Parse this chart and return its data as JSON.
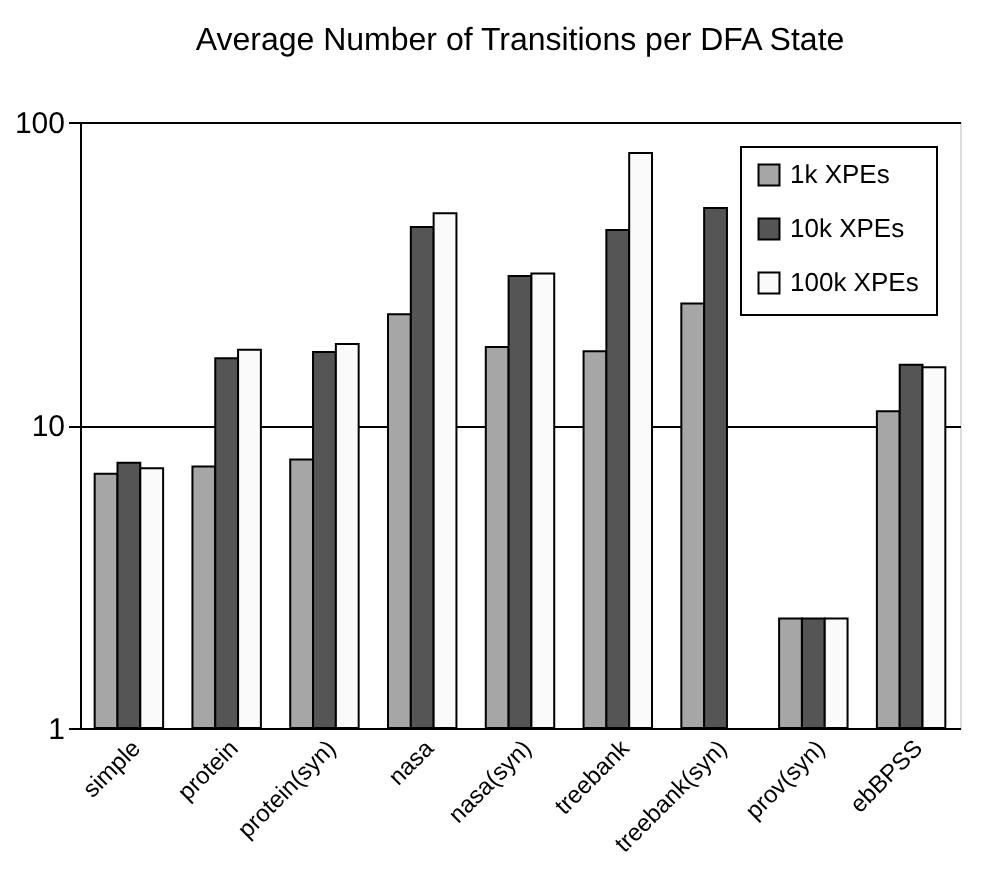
{
  "chart_data": {
    "type": "bar",
    "title": "Average Number of Transitions per DFA State",
    "categories": [
      "simple",
      "protein",
      "protein(syn)",
      "nasa",
      "nasa(syn)",
      "treebank",
      "treebank(syn)",
      "prov(syn)",
      "ebBPSS"
    ],
    "series": [
      {
        "name": "1k XPEs",
        "color": "#a6a6a6",
        "values": [
          6.9,
          7.3,
          7.7,
          23.2,
          18.1,
          17.5,
          25.2,
          2.3,
          11.1
        ]
      },
      {
        "name": "10k XPEs",
        "color": "#555555",
        "values": [
          7.5,
          16.6,
          17.4,
          45,
          31,
          44,
          52,
          2.3,
          15.8
        ]
      },
      {
        "name": "100k XPEs",
        "color": "#fafafa",
        "values": [
          7.2,
          17.7,
          18.5,
          50,
          31.6,
          79,
          null,
          2.3,
          15.5
        ]
      }
    ],
    "ylim": [
      1,
      100
    ],
    "yticks": [
      1,
      10,
      100
    ],
    "log": true,
    "grid": "y",
    "legend": "top right"
  }
}
